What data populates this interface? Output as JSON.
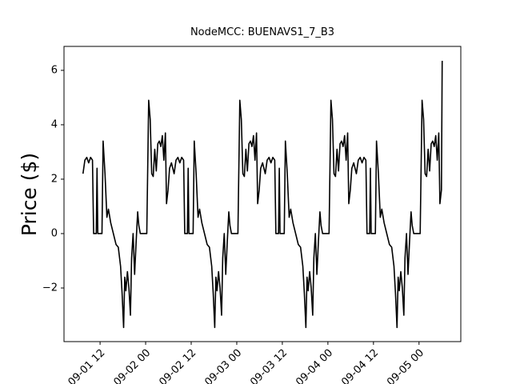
{
  "chart_data": {
    "type": "line",
    "title": "NodeMCC: BUENAVS1_7_B3",
    "y_label": "Price ($)",
    "color": "#000000",
    "x": [
      7.5,
      8,
      8.5,
      9,
      9.5,
      10,
      10.3,
      11,
      11.2,
      11.4,
      12.5,
      12.8,
      13.3,
      13.8,
      14.2,
      14.8,
      15.5,
      16.2,
      16.8,
      17.4,
      17.8,
      18.2,
      18.5,
      18.8,
      19.2,
      19.6,
      20,
      20.3,
      20.7,
      21.1,
      21.5,
      21.9,
      22.2,
      22.6,
      24.3,
      24.8,
      25.2,
      25.6,
      26,
      26.4,
      26.8,
      27.2,
      27.6,
      28,
      28.4,
      28.8,
      29.2,
      29.5,
      29.9,
      30.3,
      30.8,
      31.5,
      32,
      32.5,
      33,
      33.5,
      34,
      34.3,
      35,
      35.2,
      35.4,
      36.5,
      36.8,
      37.3,
      37.8,
      38.2,
      38.8,
      39.5,
      40.2,
      40.8,
      41.4,
      41.8,
      42.2,
      42.5,
      42.8,
      43.2,
      43.6,
      44,
      44.3,
      44.7,
      45.1,
      45.5,
      45.9,
      46.2,
      46.6,
      48.3,
      48.8,
      49.2,
      49.6,
      50,
      50.4,
      50.8,
      51.2,
      51.6,
      52,
      52.4,
      52.8,
      53.2,
      53.5,
      53.9,
      54.3,
      54.8,
      55.5,
      56,
      56.5,
      57,
      57.5,
      58,
      58.3,
      59,
      59.2,
      59.4,
      60.5,
      60.8,
      61.3,
      61.8,
      62.2,
      62.8,
      63.5,
      64.2,
      64.8,
      65.4,
      65.8,
      66.2,
      66.5,
      66.8,
      67.2,
      67.6,
      68,
      68.3,
      68.7,
      69.1,
      69.5,
      69.9,
      70.2,
      70.6,
      72.3,
      72.8,
      73.2,
      73.6,
      74,
      74.4,
      74.8,
      75.2,
      75.6,
      76,
      76.4,
      76.8,
      77.2,
      77.5,
      77.9,
      78.3,
      78.8,
      79.5,
      80,
      80.5,
      81,
      81.5,
      82,
      82.3,
      83,
      83.2,
      83.4,
      84.5,
      84.8,
      85.3,
      85.8,
      86.2,
      86.8,
      87.5,
      88.2,
      88.8,
      89.4,
      89.8,
      90.2,
      90.5,
      90.8,
      91.2,
      91.6,
      92,
      92.3,
      92.7,
      93.1,
      93.5,
      93.9,
      94.2,
      94.6,
      96.3,
      96.8,
      97.2,
      97.6,
      98,
      98.4,
      98.8,
      99.2,
      99.6,
      100,
      100.4,
      100.8,
      101.2,
      101.5,
      101.9,
      102.1
    ],
    "values": [
      2.2,
      2.7,
      2.8,
      2.6,
      2.8,
      2.7,
      0,
      0,
      2.4,
      0,
      0,
      3.4,
      2.2,
      0.6,
      0.9,
      0.4,
      0,
      -0.4,
      -0.5,
      -1.2,
      -2.2,
      -3.45,
      -1.6,
      -2.1,
      -1.4,
      -2.0,
      -3.0,
      -0.9,
      0,
      -1.5,
      -0.3,
      0.8,
      0.3,
      0,
      0,
      4.9,
      4.2,
      2.2,
      2.1,
      3.1,
      2.3,
      3.3,
      3.4,
      3.2,
      3.6,
      2.7,
      3.7,
      1.1,
      1.6,
      2.4,
      2.6,
      2.2,
      2.7,
      2.8,
      2.6,
      2.8,
      2.7,
      0,
      0,
      2.4,
      0,
      0,
      3.4,
      2.2,
      0.6,
      0.9,
      0.4,
      0,
      -0.4,
      -0.5,
      -1.2,
      -2.2,
      -3.45,
      -1.6,
      -2.1,
      -1.4,
      -2.0,
      -3.0,
      -0.9,
      0,
      -1.5,
      -0.3,
      0.8,
      0.3,
      0,
      0,
      4.9,
      4.2,
      2.2,
      2.1,
      3.1,
      2.3,
      3.3,
      3.4,
      3.2,
      3.6,
      2.7,
      3.7,
      1.1,
      1.6,
      2.4,
      2.6,
      2.2,
      2.7,
      2.8,
      2.6,
      2.8,
      2.7,
      0,
      0,
      2.4,
      0,
      0,
      3.4,
      2.2,
      0.6,
      0.9,
      0.4,
      0,
      -0.4,
      -0.5,
      -1.2,
      -2.2,
      -3.45,
      -1.6,
      -2.1,
      -1.4,
      -2.0,
      -3.0,
      -0.9,
      0,
      -1.5,
      -0.3,
      0.8,
      0.3,
      0,
      0,
      4.9,
      4.2,
      2.2,
      2.1,
      3.1,
      2.3,
      3.3,
      3.4,
      3.2,
      3.6,
      2.7,
      3.7,
      1.1,
      1.6,
      2.4,
      2.6,
      2.2,
      2.7,
      2.8,
      2.6,
      2.8,
      2.7,
      0,
      0,
      2.4,
      0,
      0,
      3.4,
      2.2,
      0.6,
      0.9,
      0.4,
      0,
      -0.4,
      -0.5,
      -1.2,
      -2.2,
      -3.45,
      -1.6,
      -2.1,
      -1.4,
      -2.0,
      -3.0,
      -0.9,
      0,
      -1.5,
      -0.3,
      0.8,
      0.3,
      0,
      0,
      4.9,
      4.2,
      2.2,
      2.1,
      3.1,
      2.3,
      3.3,
      3.4,
      3.2,
      3.6,
      2.7,
      3.7,
      1.1,
      1.6,
      6.35
    ],
    "xlim": [
      2.5,
      107
    ],
    "ylim": [
      -3.97,
      6.88
    ],
    "xticks": [
      {
        "value": 12,
        "label": "09-01 12"
      },
      {
        "value": 24,
        "label": "09-02 00"
      },
      {
        "value": 36,
        "label": "09-02 12"
      },
      {
        "value": 48,
        "label": "09-03 00"
      },
      {
        "value": 60,
        "label": "09-03 12"
      },
      {
        "value": 72,
        "label": "09-04 00"
      },
      {
        "value": 84,
        "label": "09-04 12"
      },
      {
        "value": 96,
        "label": "09-05 00"
      }
    ],
    "yticks": [
      {
        "value": -2,
        "label": "−2"
      },
      0,
      2,
      4,
      6
    ]
  }
}
